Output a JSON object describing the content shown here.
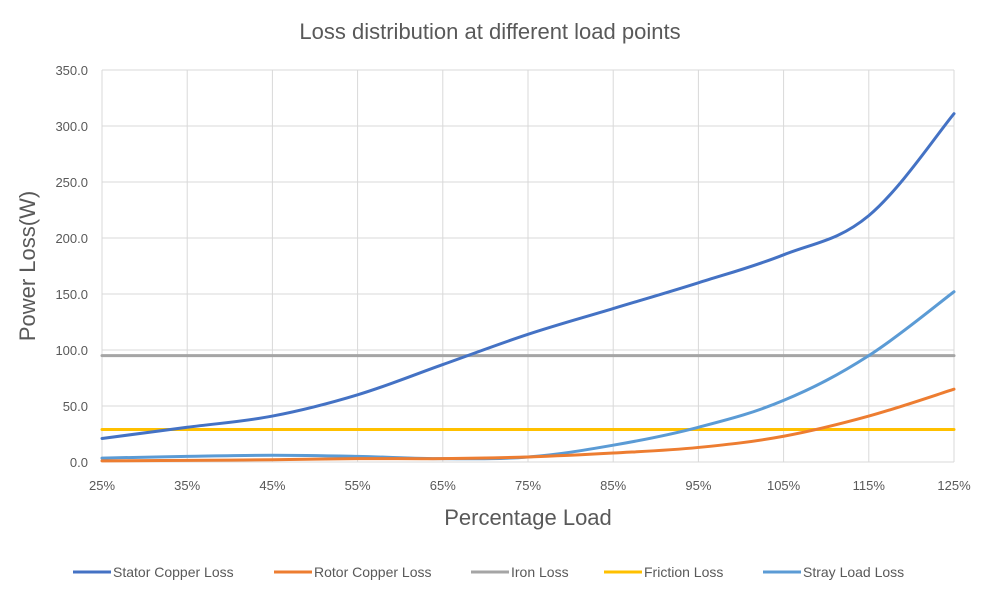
{
  "chart_data": {
    "type": "line",
    "title": "Loss distribution at different load points",
    "xlabel": "Percentage Load",
    "ylabel": "Power  Loss(W)",
    "categories": [
      "25%",
      "35%",
      "45%",
      "55%",
      "65%",
      "75%",
      "85%",
      "95%",
      "105%",
      "115%",
      "125%"
    ],
    "x": [
      25,
      35,
      45,
      55,
      65,
      75,
      85,
      95,
      105,
      115,
      125
    ],
    "ylim": [
      0,
      350
    ],
    "yticks": [
      "0.0",
      "50.0",
      "100.0",
      "150.0",
      "200.0",
      "250.0",
      "300.0",
      "350.0"
    ],
    "ytick_values": [
      0,
      50,
      100,
      150,
      200,
      250,
      300,
      350
    ],
    "grid": true,
    "legend_position": "bottom",
    "series": [
      {
        "name": "Stator Copper Loss",
        "color": "#4472C4",
        "values": [
          21,
          31,
          41,
          60,
          87,
          114,
          137,
          160,
          185,
          220,
          311
        ]
      },
      {
        "name": "Rotor Copper Loss",
        "color": "#ED7D31",
        "values": [
          1,
          1.5,
          2,
          3,
          3,
          4.5,
          8,
          13,
          23,
          41,
          65
        ]
      },
      {
        "name": "Iron Loss",
        "color": "#A5A5A5",
        "values": [
          95,
          95,
          95,
          95,
          95,
          95,
          95,
          95,
          95,
          95,
          95
        ]
      },
      {
        "name": "Friction Loss",
        "color": "#FFC000",
        "values": [
          29,
          29,
          29,
          29,
          29,
          29,
          29,
          29,
          29,
          29,
          29
        ]
      },
      {
        "name": "Stray Load Loss",
        "color": "#5B9BD5",
        "values": [
          3.5,
          5,
          6,
          5,
          3,
          4.5,
          15,
          31,
          55,
          95,
          152
        ]
      }
    ]
  }
}
